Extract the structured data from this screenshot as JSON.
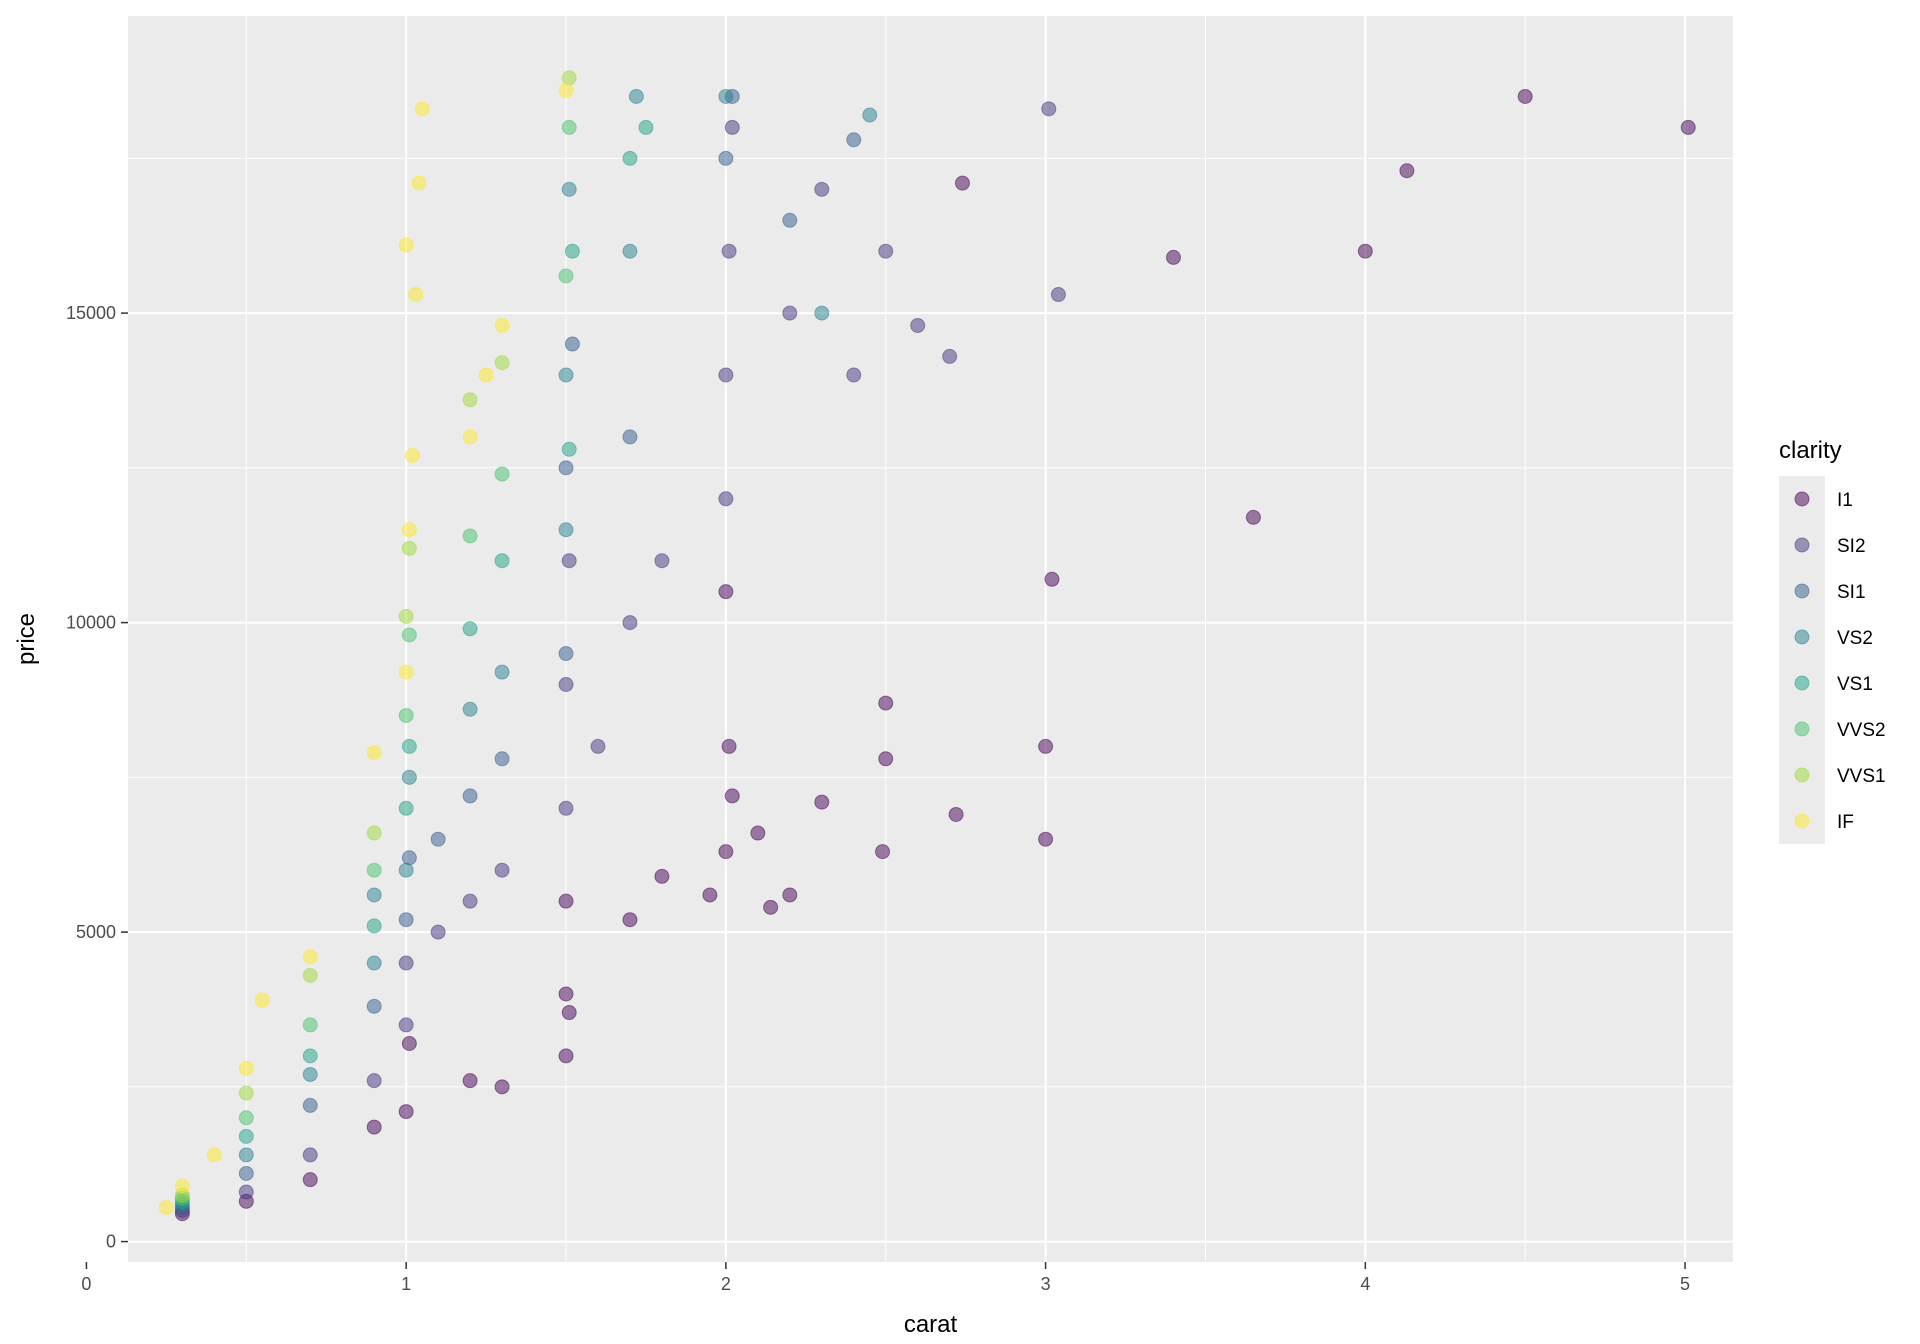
{
  "chart_data": {
    "type": "scatter",
    "title": "",
    "xlabel": "carat",
    "ylabel": "price",
    "xlim": [
      0.13,
      5.15
    ],
    "ylim": [
      -330,
      19800
    ],
    "x_ticks": [
      0,
      1,
      2,
      3,
      4,
      5
    ],
    "y_ticks": [
      0,
      5000,
      10000,
      15000
    ],
    "x_tick_labels": [
      "0",
      "1",
      "2",
      "3",
      "4",
      "5"
    ],
    "y_tick_labels": [
      "0",
      "5000",
      "10000",
      "15000"
    ],
    "grid": true,
    "point_alpha": 0.5,
    "legend": {
      "title": "clarity",
      "placement": "right",
      "items": [
        {
          "label": "I1",
          "color": "#440154"
        },
        {
          "label": "SI2",
          "color": "#46337E"
        },
        {
          "label": "SI1",
          "color": "#365C8D"
        },
        {
          "label": "VS2",
          "color": "#277F8E"
        },
        {
          "label": "VS1",
          "color": "#1FA187"
        },
        {
          "label": "VVS2",
          "color": "#4AC16D"
        },
        {
          "label": "VVS1",
          "color": "#A0DA39"
        },
        {
          "label": "IF",
          "color": "#FDE725"
        }
      ]
    },
    "series": [
      {
        "name": "I1",
        "points": [
          [
            0.3,
            450
          ],
          [
            0.5,
            650
          ],
          [
            0.7,
            1000
          ],
          [
            0.9,
            1850
          ],
          [
            1.0,
            2100
          ],
          [
            1.01,
            3200
          ],
          [
            1.2,
            2600
          ],
          [
            1.3,
            2500
          ],
          [
            1.5,
            3000
          ],
          [
            1.5,
            4000
          ],
          [
            1.5,
            5500
          ],
          [
            1.51,
            3700
          ],
          [
            1.7,
            5200
          ],
          [
            1.8,
            5900
          ],
          [
            1.95,
            5600
          ],
          [
            2.0,
            6300
          ],
          [
            2.01,
            8000
          ],
          [
            2.0,
            10500
          ],
          [
            2.02,
            7200
          ],
          [
            2.1,
            6600
          ],
          [
            2.14,
            5400
          ],
          [
            2.2,
            5600
          ],
          [
            2.3,
            7100
          ],
          [
            2.49,
            6300
          ],
          [
            2.5,
            7800
          ],
          [
            2.5,
            8700
          ],
          [
            2.72,
            6900
          ],
          [
            2.74,
            17100
          ],
          [
            3.0,
            6500
          ],
          [
            3.0,
            8000
          ],
          [
            3.02,
            10700
          ],
          [
            3.4,
            15900
          ],
          [
            3.65,
            11700
          ],
          [
            4.0,
            16000
          ],
          [
            4.13,
            17300
          ],
          [
            4.5,
            18500
          ],
          [
            5.01,
            18000
          ]
        ]
      },
      {
        "name": "SI2",
        "points": [
          [
            0.3,
            500
          ],
          [
            0.5,
            800
          ],
          [
            0.7,
            1400
          ],
          [
            0.9,
            2600
          ],
          [
            1.0,
            3500
          ],
          [
            1.0,
            4500
          ],
          [
            1.1,
            5000
          ],
          [
            1.2,
            5500
          ],
          [
            1.3,
            6000
          ],
          [
            1.5,
            7000
          ],
          [
            1.5,
            9000
          ],
          [
            1.51,
            11000
          ],
          [
            1.6,
            8000
          ],
          [
            1.7,
            10000
          ],
          [
            1.8,
            11000
          ],
          [
            2.0,
            12000
          ],
          [
            2.0,
            14000
          ],
          [
            2.01,
            16000
          ],
          [
            2.02,
            18000
          ],
          [
            2.2,
            15000
          ],
          [
            2.3,
            17000
          ],
          [
            2.4,
            14000
          ],
          [
            2.5,
            16000
          ],
          [
            2.6,
            14800
          ],
          [
            2.7,
            14300
          ],
          [
            3.01,
            18300
          ],
          [
            3.04,
            15300
          ]
        ]
      },
      {
        "name": "SI1",
        "points": [
          [
            0.3,
            550
          ],
          [
            0.5,
            1100
          ],
          [
            0.7,
            2200
          ],
          [
            0.9,
            3800
          ],
          [
            1.0,
            5200
          ],
          [
            1.01,
            6200
          ],
          [
            1.1,
            6500
          ],
          [
            1.2,
            7200
          ],
          [
            1.3,
            7800
          ],
          [
            1.5,
            9500
          ],
          [
            1.5,
            12500
          ],
          [
            1.52,
            14500
          ],
          [
            1.7,
            13000
          ],
          [
            2.0,
            17500
          ],
          [
            2.02,
            18500
          ],
          [
            2.2,
            16500
          ],
          [
            2.4,
            17800
          ]
        ]
      },
      {
        "name": "VS2",
        "points": [
          [
            0.3,
            600
          ],
          [
            0.5,
            1400
          ],
          [
            0.7,
            2700
          ],
          [
            0.9,
            4500
          ],
          [
            0.9,
            5600
          ],
          [
            1.0,
            6000
          ],
          [
            1.01,
            7500
          ],
          [
            1.2,
            8600
          ],
          [
            1.3,
            9200
          ],
          [
            1.5,
            11500
          ],
          [
            1.5,
            14000
          ],
          [
            1.51,
            17000
          ],
          [
            1.7,
            16000
          ],
          [
            1.72,
            18500
          ],
          [
            2.0,
            18500
          ],
          [
            2.3,
            15000
          ],
          [
            2.45,
            18200
          ]
        ]
      },
      {
        "name": "VS1",
        "points": [
          [
            0.3,
            650
          ],
          [
            0.5,
            1700
          ],
          [
            0.7,
            3000
          ],
          [
            0.9,
            5100
          ],
          [
            1.0,
            7000
          ],
          [
            1.01,
            8000
          ],
          [
            1.2,
            9900
          ],
          [
            1.3,
            11000
          ],
          [
            1.51,
            12800
          ],
          [
            1.52,
            16000
          ],
          [
            1.7,
            17500
          ],
          [
            1.75,
            18000
          ]
        ]
      },
      {
        "name": "VVS2",
        "points": [
          [
            0.3,
            700
          ],
          [
            0.5,
            2000
          ],
          [
            0.7,
            3500
          ],
          [
            0.9,
            6000
          ],
          [
            1.0,
            8500
          ],
          [
            1.01,
            9800
          ],
          [
            1.2,
            11400
          ],
          [
            1.3,
            12400
          ],
          [
            1.5,
            15600
          ],
          [
            1.51,
            18000
          ]
        ]
      },
      {
        "name": "VVS1",
        "points": [
          [
            0.3,
            750
          ],
          [
            0.5,
            2400
          ],
          [
            0.7,
            4300
          ],
          [
            0.9,
            6600
          ],
          [
            1.0,
            10100
          ],
          [
            1.01,
            11200
          ],
          [
            1.2,
            13600
          ],
          [
            1.3,
            14200
          ],
          [
            1.51,
            18800
          ]
        ]
      },
      {
        "name": "IF",
        "points": [
          [
            0.25,
            550
          ],
          [
            0.3,
            900
          ],
          [
            0.4,
            1400
          ],
          [
            0.5,
            2800
          ],
          [
            0.55,
            3900
          ],
          [
            0.7,
            4600
          ],
          [
            0.9,
            7900
          ],
          [
            1.0,
            9200
          ],
          [
            1.01,
            11500
          ],
          [
            1.02,
            12700
          ],
          [
            1.03,
            15300
          ],
          [
            1.0,
            16100
          ],
          [
            1.04,
            17100
          ],
          [
            1.05,
            18300
          ],
          [
            1.2,
            13000
          ],
          [
            1.25,
            14000
          ],
          [
            1.3,
            14800
          ],
          [
            1.5,
            18600
          ]
        ]
      }
    ]
  }
}
